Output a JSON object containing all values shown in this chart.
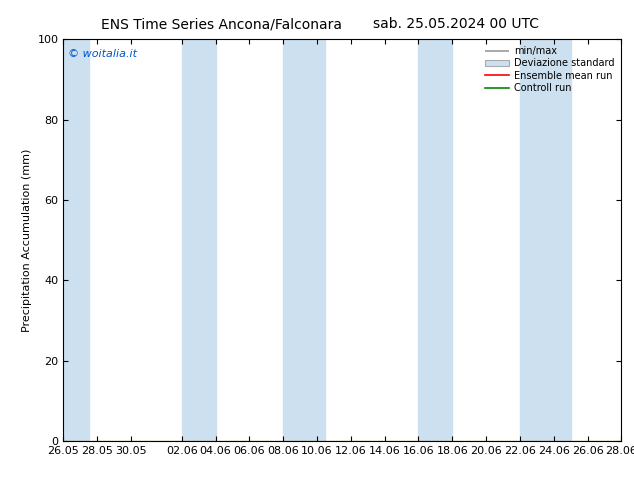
{
  "title_left": "ENS Time Series Ancona/Falconara",
  "title_right": "sab. 25.05.2024 00 UTC",
  "ylabel": "Precipitation Accumulation (mm)",
  "ylim": [
    0,
    100
  ],
  "yticks": [
    0,
    20,
    40,
    60,
    80,
    100
  ],
  "copyright_text": "© woitalia.it",
  "copyright_color": "#0055CC",
  "background_color": "#ffffff",
  "plot_bg_color": "#ffffff",
  "band_color": "#cce0f0",
  "band_alpha": 1.0,
  "xlim": [
    0,
    33
  ],
  "xtick_labels": [
    "26.05",
    "28.05",
    "30.05",
    "02.06",
    "04.06",
    "06.06",
    "08.06",
    "10.06",
    "12.06",
    "14.06",
    "16.06",
    "18.06",
    "20.06",
    "22.06",
    "24.06",
    "26.06",
    "28.06"
  ],
  "xtick_positions": [
    0,
    2,
    4,
    7,
    9,
    11,
    13,
    15,
    17,
    19,
    21,
    23,
    25,
    27,
    29,
    31,
    33
  ],
  "band_positions": [
    [
      0.0,
      1.5
    ],
    [
      7.0,
      9.0
    ],
    [
      13.0,
      15.5
    ],
    [
      21.0,
      23.0
    ],
    [
      27.0,
      30.0
    ]
  ],
  "legend_labels": [
    "min/max",
    "Deviazione standard",
    "Ensemble mean run",
    "Controll run"
  ],
  "title_fontsize": 10,
  "axis_fontsize": 8,
  "tick_fontsize": 8
}
